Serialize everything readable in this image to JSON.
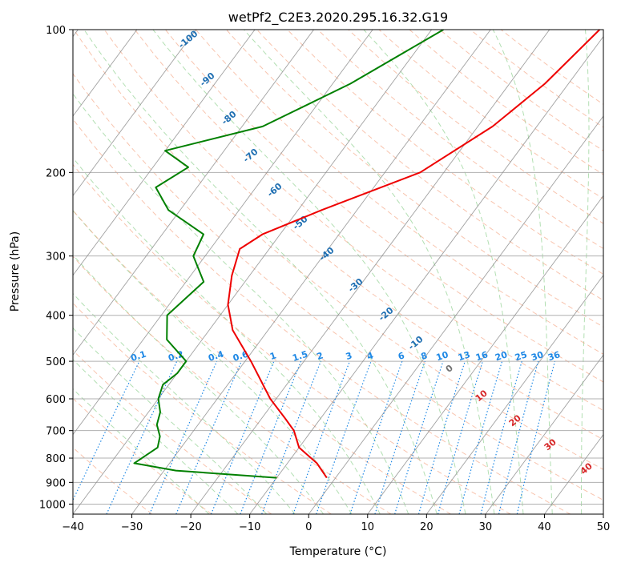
{
  "chart_data": {
    "type": "skew-t",
    "title": "wetPf2_C2E3.2020.295.16.32.G19",
    "xlabel": "Temperature (°C)",
    "ylabel": "Pressure (hPa)",
    "xlim": [
      -40,
      50
    ],
    "ylim": [
      1050,
      100
    ],
    "x_ticks": [
      -40,
      -30,
      -20,
      -10,
      0,
      10,
      20,
      30,
      40,
      50
    ],
    "y_ticks": [
      100,
      200,
      300,
      400,
      500,
      600,
      700,
      800,
      900,
      1000
    ],
    "grid": true,
    "colors": {
      "temperature": "#ee0000",
      "dewpoint": "#008000",
      "dry_adiabat": "#f4a582",
      "moist_adiabat": "#7fc97f",
      "mixing_ratio": "#1e88e5",
      "isotherm": "#808080"
    },
    "series": [
      {
        "kind": "temperature",
        "points": [
          [
            100,
            -11.5
          ],
          [
            130,
            -14
          ],
          [
            160,
            -17.5
          ],
          [
            200,
            -24
          ],
          [
            240,
            -36
          ],
          [
            270,
            -43
          ],
          [
            290,
            -45
          ],
          [
            330,
            -43
          ],
          [
            380,
            -40
          ],
          [
            430,
            -36
          ],
          [
            500,
            -29
          ],
          [
            600,
            -21
          ],
          [
            660,
            -16
          ],
          [
            700,
            -13
          ],
          [
            760,
            -10
          ],
          [
            820,
            -5
          ],
          [
            880,
            -1.5
          ]
        ]
      },
      {
        "kind": "dewpoint",
        "points": [
          [
            100,
            -38
          ],
          [
            130,
            -47
          ],
          [
            160,
            -56.5
          ],
          [
            180,
            -70
          ],
          [
            195,
            -64
          ],
          [
            215,
            -67
          ],
          [
            240,
            -62
          ],
          [
            270,
            -53
          ],
          [
            300,
            -52
          ],
          [
            340,
            -47
          ],
          [
            400,
            -49
          ],
          [
            450,
            -46
          ],
          [
            500,
            -40
          ],
          [
            530,
            -40
          ],
          [
            560,
            -41
          ],
          [
            600,
            -40
          ],
          [
            640,
            -38
          ],
          [
            680,
            -37
          ],
          [
            720,
            -35
          ],
          [
            760,
            -34
          ],
          [
            820,
            -36
          ],
          [
            850,
            -28
          ],
          [
            880,
            -10
          ]
        ]
      }
    ],
    "isotherm_labels": [
      "-100",
      "-90",
      "-80",
      "-70",
      "-60",
      "-50",
      "-40",
      "-30",
      "-20",
      "-10",
      "0",
      "10",
      "20",
      "30",
      "40"
    ],
    "mixing_ratio_labels": [
      "0.1",
      "0.2",
      "0.4",
      "0.6",
      "1",
      "1.5",
      "2",
      "3",
      "4",
      "6",
      "8",
      "10",
      "13",
      "16",
      "20",
      "25",
      "30",
      "36"
    ]
  }
}
